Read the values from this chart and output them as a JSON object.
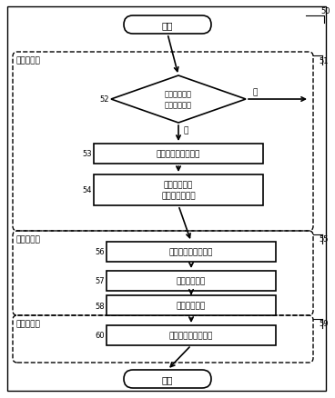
{
  "fig_width": 3.68,
  "fig_height": 4.39,
  "dpi": 100,
  "bg_color": "#ffffff",
  "box_color": "#ffffff",
  "box_edge": "#000000",
  "arrow_color": "#000000",
  "text_color": "#000000",
  "font_size": 7.0,
  "label_font_size": 6.0,
  "title": "开始",
  "end_label": "结束",
  "node_52_label": "处理档位请求\n确定换档命令",
  "node_53_label": "计算轴上要求的档位",
  "node_54_label": "计算目标档位\n发送摘挂档命令",
  "node_56_label": "计算发动机驱动状态",
  "node_57_label": "计算换档类型",
  "node_58_label": "计算换档时序",
  "node_60_label": "计算发动机控制请求",
  "group1_label": "摘挂档命令",
  "group2_label": "离合器命令",
  "group3_label": "发动机请求",
  "ref_50": "50",
  "ref_51": "51",
  "ref_52": "52",
  "ref_53": "53",
  "ref_54": "54",
  "ref_55": "55",
  "ref_56": "56",
  "ref_57": "57",
  "ref_58": "58",
  "ref_59": "59",
  "ref_60": "60",
  "yes_label": "是",
  "no_label": "否"
}
